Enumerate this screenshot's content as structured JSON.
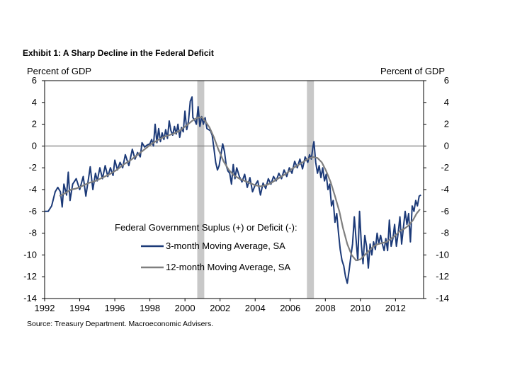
{
  "chart_data": {
    "type": "line",
    "title": "Exhibit 1: A Sharp Decline in the Federal Deficit",
    "ylabel_left": "Percent of GDP",
    "ylabel_right": "Percent of GDP",
    "xlabel": "",
    "source": "Source: Treasury Department. Macroeconomic Advisers.",
    "xlim": [
      1992,
      2013.6
    ],
    "ylim": [
      -14,
      6
    ],
    "x_ticks": [
      "1992",
      "1994",
      "1996",
      "1998",
      "2000",
      "2002",
      "2004",
      "2006",
      "2008",
      "2010",
      "2012"
    ],
    "y_ticks": [
      "6",
      "4",
      "2",
      "0",
      "-2",
      "-4",
      "-6",
      "-8",
      "-10",
      "-12",
      "-14"
    ],
    "legend": {
      "title": "Federal Government Suplus (+) or Deficit (-):",
      "placement": "center"
    },
    "recessions": [
      [
        2000.7,
        2001.1
      ],
      [
        2006.95,
        2007.35
      ]
    ],
    "zero_line": 0,
    "series": [
      {
        "name": "3-month Moving Average, SA",
        "color": "#1c3a78",
        "points": [
          [
            1992.0,
            -6.0
          ],
          [
            1992.2,
            -6.0
          ],
          [
            1992.4,
            -5.5
          ],
          [
            1992.6,
            -4.2
          ],
          [
            1992.75,
            -3.8
          ],
          [
            1992.9,
            -4.2
          ],
          [
            1993.0,
            -5.6
          ],
          [
            1993.1,
            -3.5
          ],
          [
            1993.25,
            -4.5
          ],
          [
            1993.35,
            -2.4
          ],
          [
            1993.45,
            -5.0
          ],
          [
            1993.6,
            -3.5
          ],
          [
            1993.8,
            -3.0
          ],
          [
            1994.0,
            -4.0
          ],
          [
            1994.2,
            -2.8
          ],
          [
            1994.35,
            -4.6
          ],
          [
            1994.5,
            -3.0
          ],
          [
            1994.6,
            -1.9
          ],
          [
            1994.75,
            -4.0
          ],
          [
            1994.9,
            -2.5
          ],
          [
            1995.0,
            -3.2
          ],
          [
            1995.15,
            -2.0
          ],
          [
            1995.3,
            -3.0
          ],
          [
            1995.45,
            -1.8
          ],
          [
            1995.6,
            -2.8
          ],
          [
            1995.75,
            -2.0
          ],
          [
            1995.9,
            -2.7
          ],
          [
            1996.0,
            -1.3
          ],
          [
            1996.15,
            -2.2
          ],
          [
            1996.3,
            -1.5
          ],
          [
            1996.45,
            -2.0
          ],
          [
            1996.6,
            -0.8
          ],
          [
            1996.8,
            -1.8
          ],
          [
            1997.0,
            -0.3
          ],
          [
            1997.15,
            -1.2
          ],
          [
            1997.3,
            -0.6
          ],
          [
            1997.45,
            -1.0
          ],
          [
            1997.55,
            0.3
          ],
          [
            1997.7,
            -0.1
          ],
          [
            1997.85,
            0.1
          ],
          [
            1998.0,
            0.2
          ],
          [
            1998.1,
            0.6
          ],
          [
            1998.2,
            0.0
          ],
          [
            1998.3,
            2.0
          ],
          [
            1998.4,
            0.3
          ],
          [
            1998.5,
            1.6
          ],
          [
            1998.6,
            0.4
          ],
          [
            1998.7,
            1.2
          ],
          [
            1998.8,
            0.6
          ],
          [
            1998.9,
            1.5
          ],
          [
            1999.0,
            0.7
          ],
          [
            1999.1,
            2.3
          ],
          [
            1999.2,
            1.4
          ],
          [
            1999.3,
            1.0
          ],
          [
            1999.4,
            1.8
          ],
          [
            1999.5,
            1.1
          ],
          [
            1999.6,
            2.0
          ],
          [
            1999.7,
            0.8
          ],
          [
            1999.8,
            1.7
          ],
          [
            1999.9,
            1.3
          ],
          [
            2000.0,
            3.2
          ],
          [
            2000.1,
            1.5
          ],
          [
            2000.2,
            2.3
          ],
          [
            2000.3,
            4.1
          ],
          [
            2000.4,
            4.5
          ],
          [
            2000.45,
            2.6
          ],
          [
            2000.55,
            2.4
          ],
          [
            2000.65,
            2.0
          ],
          [
            2000.75,
            3.6
          ],
          [
            2000.85,
            1.8
          ],
          [
            2000.95,
            2.7
          ],
          [
            2001.05,
            2.0
          ],
          [
            2001.15,
            2.6
          ],
          [
            2001.25,
            1.6
          ],
          [
            2001.35,
            1.5
          ],
          [
            2001.45,
            1.4
          ],
          [
            2001.55,
            1.0
          ],
          [
            2001.65,
            -0.2
          ],
          [
            2001.75,
            -1.5
          ],
          [
            2001.85,
            -2.2
          ],
          [
            2001.95,
            -1.8
          ],
          [
            2002.05,
            -0.8
          ],
          [
            2002.15,
            0.2
          ],
          [
            2002.25,
            -0.5
          ],
          [
            2002.35,
            -1.8
          ],
          [
            2002.45,
            -2.3
          ],
          [
            2002.55,
            -2.5
          ],
          [
            2002.65,
            -3.5
          ],
          [
            2002.75,
            -1.7
          ],
          [
            2002.85,
            -3.0
          ],
          [
            2002.95,
            -2.0
          ],
          [
            2003.1,
            -2.8
          ],
          [
            2003.25,
            -3.3
          ],
          [
            2003.4,
            -2.6
          ],
          [
            2003.55,
            -3.8
          ],
          [
            2003.7,
            -2.9
          ],
          [
            2003.85,
            -4.2
          ],
          [
            2004.0,
            -3.6
          ],
          [
            2004.15,
            -3.2
          ],
          [
            2004.3,
            -4.5
          ],
          [
            2004.45,
            -3.4
          ],
          [
            2004.6,
            -3.9
          ],
          [
            2004.75,
            -3.0
          ],
          [
            2004.9,
            -3.5
          ],
          [
            2005.05,
            -2.8
          ],
          [
            2005.2,
            -3.2
          ],
          [
            2005.35,
            -2.5
          ],
          [
            2005.5,
            -3.0
          ],
          [
            2005.65,
            -2.2
          ],
          [
            2005.8,
            -2.8
          ],
          [
            2005.95,
            -2.0
          ],
          [
            2006.1,
            -2.5
          ],
          [
            2006.25,
            -1.4
          ],
          [
            2006.4,
            -2.0
          ],
          [
            2006.55,
            -1.2
          ],
          [
            2006.7,
            -2.1
          ],
          [
            2006.85,
            -1.0
          ],
          [
            2007.0,
            -1.5
          ],
          [
            2007.1,
            -0.8
          ],
          [
            2007.2,
            -1.2
          ],
          [
            2007.3,
            0.0
          ],
          [
            2007.35,
            0.4
          ],
          [
            2007.45,
            -1.5
          ],
          [
            2007.55,
            -2.5
          ],
          [
            2007.65,
            -1.8
          ],
          [
            2007.75,
            -2.9
          ],
          [
            2007.85,
            -2.0
          ],
          [
            2007.95,
            -3.2
          ],
          [
            2008.05,
            -2.6
          ],
          [
            2008.15,
            -4.0
          ],
          [
            2008.25,
            -3.5
          ],
          [
            2008.35,
            -5.5
          ],
          [
            2008.45,
            -5.0
          ],
          [
            2008.55,
            -7.0
          ],
          [
            2008.65,
            -6.2
          ],
          [
            2008.75,
            -8.0
          ],
          [
            2008.85,
            -9.5
          ],
          [
            2008.95,
            -10.5
          ],
          [
            2009.05,
            -11.0
          ],
          [
            2009.15,
            -12.0
          ],
          [
            2009.25,
            -12.6
          ],
          [
            2009.35,
            -11.5
          ],
          [
            2009.45,
            -10.2
          ],
          [
            2009.55,
            -9.0
          ],
          [
            2009.65,
            -6.5
          ],
          [
            2009.75,
            -8.5
          ],
          [
            2009.85,
            -10.5
          ],
          [
            2009.95,
            -6.0
          ],
          [
            2010.05,
            -9.0
          ],
          [
            2010.15,
            -10.8
          ],
          [
            2010.25,
            -8.2
          ],
          [
            2010.35,
            -9.2
          ],
          [
            2010.45,
            -11.2
          ],
          [
            2010.55,
            -9.0
          ],
          [
            2010.65,
            -10.0
          ],
          [
            2010.75,
            -8.8
          ],
          [
            2010.85,
            -9.5
          ],
          [
            2010.95,
            -8.0
          ],
          [
            2011.05,
            -9.0
          ],
          [
            2011.15,
            -8.2
          ],
          [
            2011.25,
            -9.0
          ],
          [
            2011.35,
            -9.6
          ],
          [
            2011.45,
            -8.5
          ],
          [
            2011.55,
            -9.6
          ],
          [
            2011.65,
            -6.8
          ],
          [
            2011.75,
            -9.2
          ],
          [
            2011.85,
            -8.5
          ],
          [
            2011.95,
            -7.2
          ],
          [
            2012.05,
            -9.2
          ],
          [
            2012.15,
            -8.0
          ],
          [
            2012.25,
            -6.5
          ],
          [
            2012.35,
            -9.0
          ],
          [
            2012.45,
            -7.5
          ],
          [
            2012.55,
            -6.0
          ],
          [
            2012.65,
            -7.2
          ],
          [
            2012.75,
            -6.2
          ],
          [
            2012.85,
            -8.8
          ],
          [
            2012.95,
            -5.5
          ],
          [
            2013.05,
            -6.0
          ],
          [
            2013.15,
            -5.0
          ],
          [
            2013.25,
            -5.5
          ],
          [
            2013.35,
            -4.6
          ],
          [
            2013.45,
            -4.5
          ]
        ]
      },
      {
        "name": "12-month Moving Average, SA",
        "color": "#7f7f7f",
        "points": [
          [
            1992.85,
            -4.6
          ],
          [
            1993.2,
            -4.3
          ],
          [
            1993.5,
            -4.0
          ],
          [
            1993.8,
            -3.9
          ],
          [
            1994.1,
            -3.7
          ],
          [
            1994.5,
            -3.4
          ],
          [
            1994.9,
            -3.2
          ],
          [
            1995.3,
            -2.9
          ],
          [
            1995.7,
            -2.6
          ],
          [
            1996.1,
            -2.2
          ],
          [
            1996.5,
            -1.7
          ],
          [
            1996.9,
            -1.3
          ],
          [
            1997.3,
            -0.8
          ],
          [
            1997.7,
            -0.3
          ],
          [
            1998.1,
            0.2
          ],
          [
            1998.5,
            0.6
          ],
          [
            1998.9,
            0.9
          ],
          [
            1999.3,
            1.1
          ],
          [
            1999.7,
            1.4
          ],
          [
            2000.1,
            1.9
          ],
          [
            2000.4,
            2.3
          ],
          [
            2000.7,
            2.6
          ],
          [
            2000.95,
            2.65
          ],
          [
            2001.15,
            2.3
          ],
          [
            2001.4,
            1.7
          ],
          [
            2001.65,
            0.8
          ],
          [
            2001.9,
            -0.3
          ],
          [
            2002.2,
            -1.4
          ],
          [
            2002.5,
            -2.2
          ],
          [
            2002.8,
            -2.7
          ],
          [
            2003.1,
            -3.0
          ],
          [
            2003.4,
            -3.2
          ],
          [
            2003.7,
            -3.4
          ],
          [
            2004.0,
            -3.6
          ],
          [
            2004.3,
            -3.7
          ],
          [
            2004.6,
            -3.6
          ],
          [
            2004.9,
            -3.4
          ],
          [
            2005.2,
            -3.1
          ],
          [
            2005.5,
            -2.8
          ],
          [
            2005.8,
            -2.5
          ],
          [
            2006.1,
            -2.1
          ],
          [
            2006.4,
            -1.8
          ],
          [
            2006.7,
            -1.5
          ],
          [
            2007.0,
            -1.2
          ],
          [
            2007.3,
            -1.0
          ],
          [
            2007.55,
            -1.1
          ],
          [
            2007.8,
            -1.5
          ],
          [
            2008.05,
            -2.3
          ],
          [
            2008.3,
            -3.3
          ],
          [
            2008.55,
            -4.6
          ],
          [
            2008.8,
            -6.0
          ],
          [
            2009.0,
            -7.5
          ],
          [
            2009.25,
            -9.0
          ],
          [
            2009.5,
            -10.0
          ],
          [
            2009.75,
            -10.5
          ],
          [
            2010.0,
            -10.4
          ],
          [
            2010.25,
            -10.0
          ],
          [
            2010.5,
            -9.6
          ],
          [
            2010.75,
            -9.2
          ],
          [
            2011.0,
            -9.0
          ],
          [
            2011.25,
            -8.9
          ],
          [
            2011.5,
            -8.8
          ],
          [
            2011.75,
            -8.5
          ],
          [
            2012.0,
            -8.2
          ],
          [
            2012.25,
            -7.8
          ],
          [
            2012.5,
            -7.6
          ],
          [
            2012.75,
            -7.3
          ],
          [
            2013.0,
            -6.8
          ],
          [
            2013.2,
            -6.2
          ],
          [
            2013.4,
            -5.8
          ]
        ]
      }
    ]
  }
}
